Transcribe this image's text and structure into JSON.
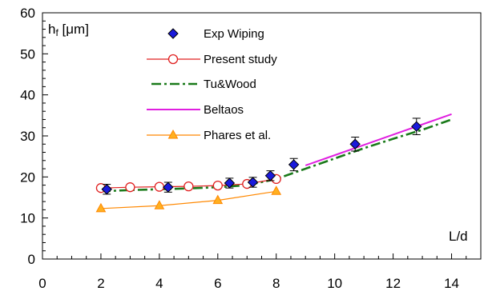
{
  "chart_data": {
    "type": "scatter",
    "xlabel": "L/d",
    "ylabel": "hf [μm]",
    "xlim": [
      0,
      15
    ],
    "ylim": [
      0,
      60
    ],
    "xticks": [
      0,
      2,
      4,
      6,
      8,
      10,
      12,
      14
    ],
    "yticks": [
      0,
      10,
      20,
      30,
      40,
      50,
      60
    ],
    "grid": false,
    "legend_position": "top-center",
    "series": [
      {
        "name": "Exp Wiping",
        "style": "marker",
        "marker": "diamond",
        "color": "#1a1adb",
        "x": [
          2.2,
          4.3,
          6.4,
          7.2,
          7.8,
          8.6,
          10.7,
          12.8
        ],
        "y": [
          17.0,
          17.5,
          18.5,
          18.7,
          20.3,
          23.0,
          28.0,
          32.3
        ],
        "error": [
          1.2,
          1.2,
          1.2,
          1.2,
          1.2,
          1.5,
          1.7,
          2.0
        ]
      },
      {
        "name": "Present study",
        "style": "line+marker",
        "marker": "circle-open",
        "color": "#e02020",
        "x": [
          2,
          3,
          4,
          5,
          6,
          7,
          8
        ],
        "y": [
          17.3,
          17.5,
          17.6,
          17.7,
          17.9,
          18.3,
          19.5
        ]
      },
      {
        "name": "Tu&Wood",
        "style": "dashdot",
        "color": "#1a7a1a",
        "x": [
          2,
          3,
          4,
          5,
          6,
          7,
          8,
          9,
          10,
          11,
          12,
          13,
          14
        ],
        "y": [
          16.5,
          16.8,
          17.0,
          17.2,
          17.5,
          18.0,
          19.5,
          22.0,
          24.5,
          27.0,
          29.3,
          31.5,
          34.0
        ]
      },
      {
        "name": "Beltaos",
        "style": "line",
        "color": "#e020e0",
        "x": [
          9,
          10,
          11,
          12,
          13,
          14
        ],
        "y": [
          22.8,
          25.3,
          27.8,
          30.3,
          32.8,
          35.3
        ]
      },
      {
        "name": "Phares et al.",
        "style": "line+marker",
        "marker": "triangle",
        "color": "#ff8800",
        "marker_fill": "#ffb020",
        "x": [
          2,
          4,
          6,
          8
        ],
        "y": [
          12.3,
          13.0,
          14.3,
          16.5
        ]
      }
    ]
  }
}
